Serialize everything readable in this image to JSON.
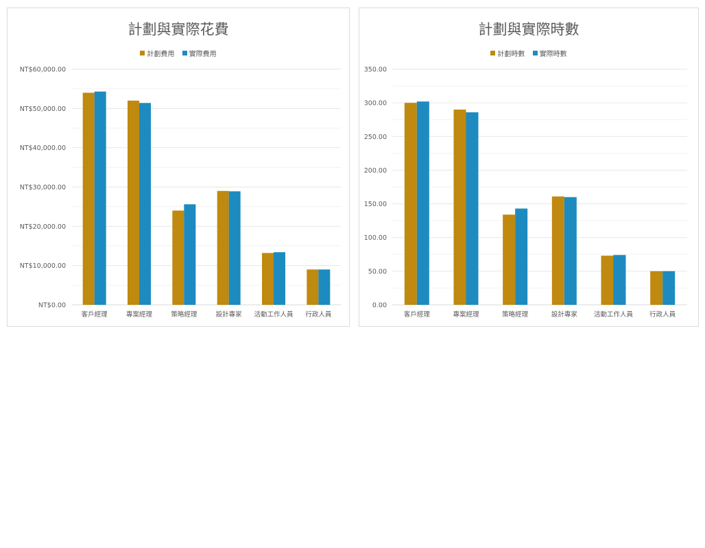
{
  "chart_data": [
    {
      "id": "cost",
      "type": "bar",
      "title": "計劃與實際花費",
      "categories": [
        "客戶經理",
        "專案經理",
        "策略經理",
        "設計專家",
        "活動工作人員",
        "行政人員"
      ],
      "series": [
        {
          "name": "計劃費用",
          "color": "#C0890F",
          "values": [
            54000,
            52000,
            24000,
            29000,
            13200,
            9000
          ]
        },
        {
          "name": "實際費用",
          "color": "#1D8BBF",
          "values": [
            54300,
            51400,
            25600,
            28900,
            13400,
            9000
          ]
        }
      ],
      "ylim": [
        0,
        60000
      ],
      "yticks": [
        0,
        10000,
        20000,
        30000,
        40000,
        50000,
        60000
      ],
      "ytick_labels": [
        "NT$0.00",
        "NT$10,000.00",
        "NT$20,000.00",
        "NT$30,000.00",
        "NT$40,000.00",
        "NT$50,000.00",
        "NT$60,000.00"
      ],
      "grid": true,
      "legend": "top"
    },
    {
      "id": "hours",
      "type": "bar",
      "title": "計劃與實際時數",
      "categories": [
        "客戶經理",
        "專案經理",
        "策略經理",
        "設計專家",
        "活動工作人員",
        "行政人員"
      ],
      "series": [
        {
          "name": "計劃時數",
          "color": "#C0890F",
          "values": [
            300,
            290,
            134,
            161,
            73,
            50
          ]
        },
        {
          "name": "實際時數",
          "color": "#1D8BBF",
          "values": [
            302,
            286,
            143,
            160,
            74,
            50
          ]
        }
      ],
      "ylim": [
        0,
        350
      ],
      "yticks": [
        0,
        50,
        100,
        150,
        200,
        250,
        300,
        350
      ],
      "ytick_labels": [
        "0.00",
        "50.00",
        "100.00",
        "150.00",
        "200.00",
        "250.00",
        "300.00",
        "350.00"
      ],
      "grid": true,
      "legend": "top"
    }
  ]
}
